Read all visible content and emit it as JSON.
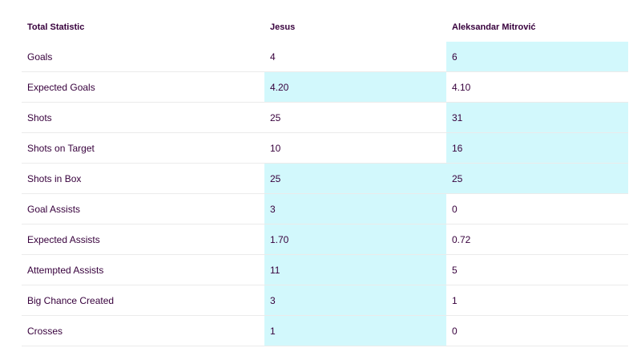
{
  "header": {
    "stat_label": "Total Statistic",
    "player1": "Jesus",
    "player2": "Aleksandar Mitrović"
  },
  "colors": {
    "highlight": "#d2f8fc",
    "text": "#37003c",
    "divider": "#ebebeb"
  },
  "rows": [
    {
      "stat": "Goals",
      "p1": "4",
      "p2": "6",
      "p1_highlight": false,
      "p2_highlight": true
    },
    {
      "stat": "Expected Goals",
      "p1": "4.20",
      "p2": "4.10",
      "p1_highlight": true,
      "p2_highlight": false
    },
    {
      "stat": "Shots",
      "p1": "25",
      "p2": "31",
      "p1_highlight": false,
      "p2_highlight": true
    },
    {
      "stat": "Shots on Target",
      "p1": "10",
      "p2": "16",
      "p1_highlight": false,
      "p2_highlight": true
    },
    {
      "stat": "Shots in Box",
      "p1": "25",
      "p2": "25",
      "p1_highlight": true,
      "p2_highlight": true
    },
    {
      "stat": "Goal Assists",
      "p1": "3",
      "p2": "0",
      "p1_highlight": true,
      "p2_highlight": false
    },
    {
      "stat": "Expected Assists",
      "p1": "1.70",
      "p2": "0.72",
      "p1_highlight": true,
      "p2_highlight": false
    },
    {
      "stat": "Attempted Assists",
      "p1": "11",
      "p2": "5",
      "p1_highlight": true,
      "p2_highlight": false
    },
    {
      "stat": "Big Chance Created",
      "p1": "3",
      "p2": "1",
      "p1_highlight": true,
      "p2_highlight": false
    },
    {
      "stat": "Crosses",
      "p1": "1",
      "p2": "0",
      "p1_highlight": true,
      "p2_highlight": false
    }
  ]
}
